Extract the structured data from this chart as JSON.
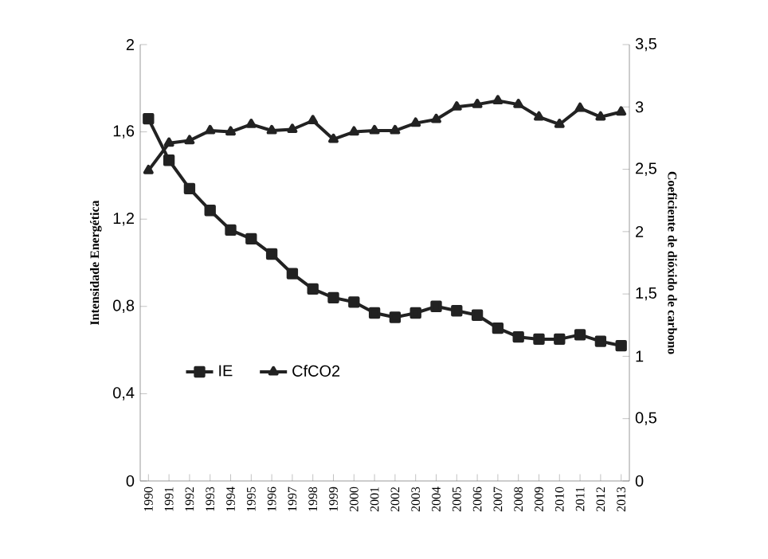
{
  "chart_data": {
    "type": "line",
    "ylabel": "Intensidade Energética",
    "y2label": "Coeficiente de dióxido de carbono",
    "categories": [
      "1990",
      "1991",
      "1992",
      "1993",
      "1994",
      "1995",
      "1996",
      "1997",
      "1998",
      "1999",
      "2000",
      "2001",
      "2002",
      "2003",
      "2004",
      "2005",
      "2006",
      "2007",
      "2008",
      "2009",
      "2010",
      "2011",
      "2012",
      "2013"
    ],
    "series": [
      {
        "name": "IE",
        "color": "#222222",
        "marker": "square",
        "values": [
          1.66,
          1.47,
          1.34,
          1.24,
          1.15,
          1.11,
          1.04,
          0.95,
          0.88,
          0.84,
          0.82,
          0.77,
          0.75,
          0.77,
          0.8,
          0.78,
          0.76,
          0.7,
          0.66,
          0.65,
          0.65,
          0.67,
          0.64,
          0.62
        ]
      },
      {
        "name": "CfCO2",
        "color": "#222222",
        "marker": "triangle",
        "axis": "y2",
        "values": [
          2.49,
          2.71,
          2.73,
          2.81,
          2.8,
          2.86,
          2.81,
          2.82,
          2.89,
          2.74,
          2.8,
          2.81,
          2.81,
          2.87,
          2.9,
          3.0,
          3.02,
          3.05,
          3.02,
          2.92,
          2.86,
          2.99,
          2.92,
          2.96
        ]
      }
    ],
    "ylim": [
      0,
      2
    ],
    "yticks": [
      0,
      {
        "value": 0.4,
        "label": "0,4"
      },
      {
        "value": 0.8,
        "label": "0,8"
      },
      {
        "value": 1.2,
        "label": "1,2"
      },
      {
        "value": 1.6,
        "label": "1,6"
      },
      2
    ],
    "y2lim": [
      0,
      3.5
    ],
    "y2ticks": [
      0,
      {
        "value": 0.5,
        "label": "0,5"
      },
      1,
      {
        "value": 1.5,
        "label": "1,5"
      },
      2,
      {
        "value": 2.5,
        "label": "2,5"
      },
      3,
      {
        "value": 3.5,
        "label": "3,5"
      }
    ],
    "grid": false,
    "legend": "left",
    "line_style": "solid"
  }
}
